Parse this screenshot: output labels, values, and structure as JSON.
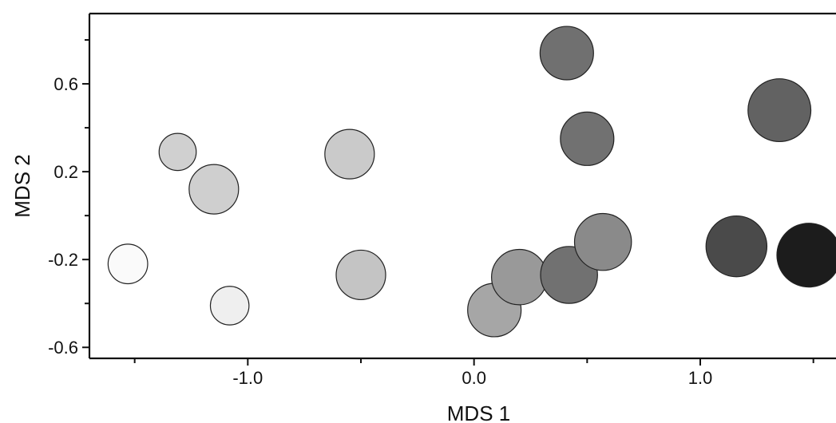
{
  "chart_data": {
    "type": "scatter",
    "xlabel": "MDS 1",
    "ylabel": "MDS 2",
    "xlim": [
      -1.7,
      1.6
    ],
    "ylim": [
      -0.65,
      0.92
    ],
    "x_ticks": [
      {
        "value": -1.0,
        "label": "-1.0"
      },
      {
        "value": 0.0,
        "label": "0.0"
      },
      {
        "value": 1.0,
        "label": "1.0"
      }
    ],
    "x_minor_ticks": [
      -1.5,
      -0.5,
      0.5,
      1.5
    ],
    "y_ticks": [
      {
        "value": -0.6,
        "label": "-0.6"
      },
      {
        "value": -0.2,
        "label": "-0.2"
      },
      {
        "value": 0.2,
        "label": "0.2"
      },
      {
        "value": 0.6,
        "label": "0.6"
      }
    ],
    "y_minor_ticks": [
      -0.4,
      0.0,
      0.4,
      0.8
    ],
    "grid": false,
    "legend": "none",
    "size_unit": "relative",
    "points": [
      {
        "x": -1.53,
        "y": -0.22,
        "size": 0.8,
        "color": "#fafafa"
      },
      {
        "x": -1.08,
        "y": -0.41,
        "size": 0.78,
        "color": "#efefef"
      },
      {
        "x": -1.31,
        "y": 0.29,
        "size": 0.75,
        "color": "#d0d0d0"
      },
      {
        "x": -1.15,
        "y": 0.12,
        "size": 1.0,
        "color": "#cfcfcf"
      },
      {
        "x": -0.55,
        "y": 0.28,
        "size": 1.0,
        "color": "#cacaca"
      },
      {
        "x": -0.5,
        "y": -0.27,
        "size": 1.0,
        "color": "#c4c4c4"
      },
      {
        "x": 0.09,
        "y": -0.43,
        "size": 1.08,
        "color": "#a6a6a6"
      },
      {
        "x": 0.2,
        "y": -0.28,
        "size": 1.12,
        "color": "#999999"
      },
      {
        "x": 0.42,
        "y": -0.27,
        "size": 1.15,
        "color": "#717171"
      },
      {
        "x": 0.57,
        "y": -0.12,
        "size": 1.15,
        "color": "#8a8a8a"
      },
      {
        "x": 0.41,
        "y": 0.74,
        "size": 1.08,
        "color": "#707070"
      },
      {
        "x": 0.5,
        "y": 0.35,
        "size": 1.08,
        "color": "#717171"
      },
      {
        "x": 1.16,
        "y": -0.14,
        "size": 1.23,
        "color": "#4a4a4a"
      },
      {
        "x": 1.35,
        "y": 0.48,
        "size": 1.27,
        "color": "#626262"
      },
      {
        "x": 1.48,
        "y": -0.18,
        "size": 1.29,
        "color": "#1c1c1c"
      }
    ]
  }
}
